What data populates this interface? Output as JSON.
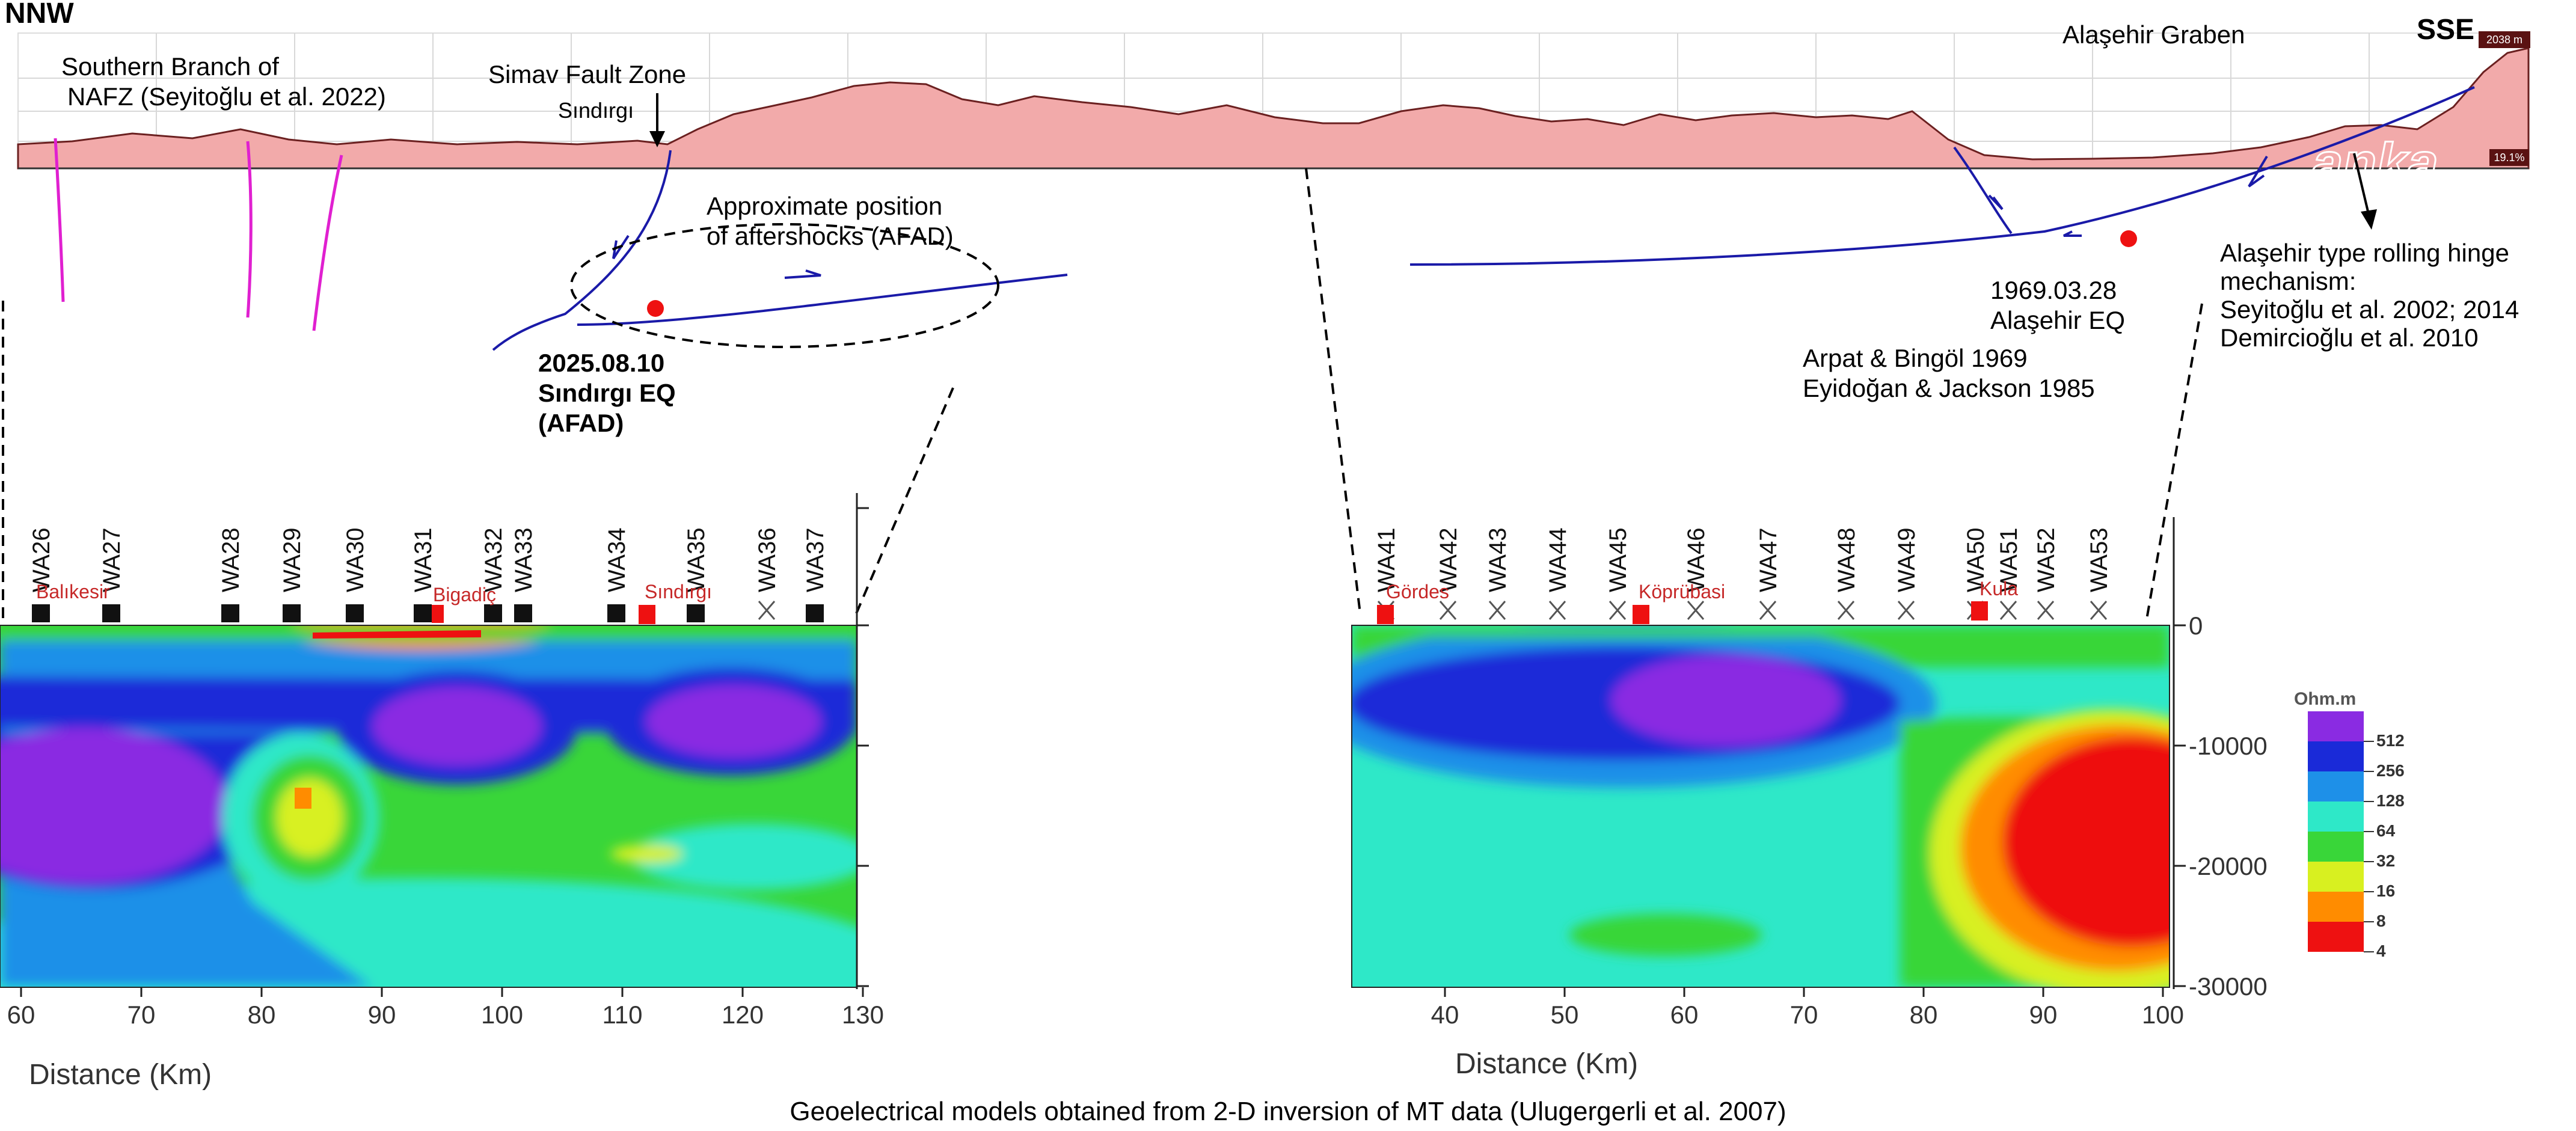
{
  "header": {
    "left_direction": "NNW",
    "right_direction": "SSE"
  },
  "topo": {
    "elevation_badge": "2038 m",
    "grade_badge": "19.1%",
    "watermark": "anka",
    "labels": {
      "nafz_line1": "Southern Branch of",
      "nafz_line2": "NAFZ (Seyitoğlu et al. 2022)",
      "simav": "Simav Fault Zone",
      "sindirgi": "Sındırgı",
      "graben": "Alaşehir Graben"
    }
  },
  "annotations": {
    "aftershocks_line1": "Approximate position",
    "aftershocks_line2": "of aftershocks (AFAD)",
    "sindirgi_eq_line1": "2025.08.10",
    "sindirgi_eq_line2": "Sındırgı EQ",
    "sindirgi_eq_line3": "(AFAD)",
    "alasehir_eq_line1": "1969.03.28",
    "alasehir_eq_line2": "Alaşehir EQ",
    "ref1": "Arpat & Bingöl 1969",
    "ref2": "Eyidoğan & Jackson 1985",
    "hinge_line1": "Alaşehir type rolling hinge",
    "hinge_line2": "mechanism:",
    "hinge_line3": "Seyitoğlu et al. 2002; 2014",
    "hinge_line4": "Demircioğlu et al. 2010"
  },
  "left_section": {
    "stations": [
      "WA26",
      "WA27",
      "WA28",
      "WA29",
      "WA30",
      "WA31",
      "WA32",
      "WA33",
      "WA34",
      "WA35",
      "WA36",
      "WA37"
    ],
    "towns": [
      "Balıkesir",
      "Bigadiç",
      "Sındırgı"
    ],
    "x_ticks": [
      "60",
      "70",
      "80",
      "90",
      "100",
      "110",
      "120",
      "130"
    ],
    "xlabel": "Distance (Km)"
  },
  "right_section": {
    "stations": [
      "WA41",
      "WA42",
      "WA43",
      "WA44",
      "WA45",
      "WA46",
      "WA47",
      "WA48",
      "WA49",
      "WA50",
      "WA51",
      "WA52",
      "WA53"
    ],
    "towns": [
      "Gördes",
      "Köprübasi",
      "Kula"
    ],
    "x_ticks": [
      "40",
      "50",
      "60",
      "70",
      "80",
      "90",
      "100"
    ],
    "y_ticks": [
      "0",
      "-10000",
      "-20000",
      "-30000"
    ],
    "xlabel": "Distance (Km)"
  },
  "legend": {
    "title": "Ohm.m",
    "entries": [
      {
        "label": "512",
        "color": "#8a2be2"
      },
      {
        "label": "256",
        "color": "#1a2ad8"
      },
      {
        "label": "128",
        "color": "#1e90e8"
      },
      {
        "label": "64",
        "color": "#2ee8c8"
      },
      {
        "label": "32",
        "color": "#39d639"
      },
      {
        "label": "16",
        "color": "#d8f020"
      },
      {
        "label": "8",
        "color": "#ff8c00"
      },
      {
        "label": "4",
        "color": "#ee1111"
      }
    ]
  },
  "caption": "Geoelectrical models obtained from 2-D inversion of MT data (Ulugergerli et al. 2007)"
}
